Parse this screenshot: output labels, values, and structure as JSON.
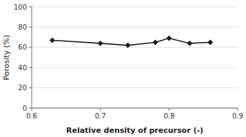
{
  "chart_data": {
    "type": "line",
    "x": [
      0.63,
      0.7,
      0.74,
      0.78,
      0.8,
      0.83,
      0.86
    ],
    "values": [
      67,
      64,
      62,
      65,
      69,
      64,
      65
    ],
    "xlabel": "Relative density of precursor (-)",
    "ylabel": "Porosity (%)",
    "xlim": [
      0.6,
      0.9
    ],
    "ylim": [
      0,
      100
    ],
    "xticks": [
      0.6,
      0.7,
      0.8,
      0.9
    ],
    "yticks": [
      0,
      20,
      40,
      60,
      80,
      100
    ],
    "grid": true,
    "color": "#1a1a1a",
    "marker": "diamond"
  }
}
